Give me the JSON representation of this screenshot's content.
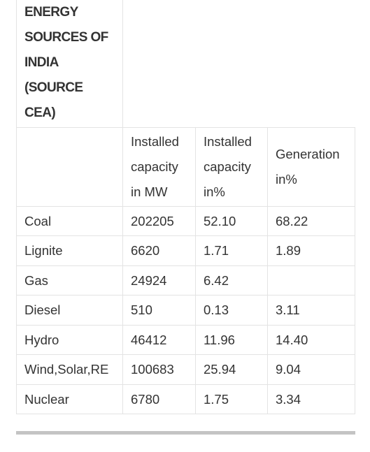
{
  "title": "ENERGY SOURCES OF INDIA (SOURCE CEA)",
  "table": {
    "header": [
      null,
      "Installed capacity in MW",
      "Installed capacity in%",
      "Generation in%"
    ],
    "rows": [
      [
        "Coal",
        "202205",
        "52.10",
        "68.22"
      ],
      [
        "Lignite",
        "6620",
        "1.71",
        "1.89"
      ],
      [
        "Gas",
        "24924",
        "6.42",
        null
      ],
      [
        "Diesel",
        "510",
        "0.13",
        "3.11"
      ],
      [
        "Hydro",
        "46412",
        "11.96",
        "14.40"
      ],
      [
        "Wind,Solar,RE",
        "100683",
        "25.94",
        "9.04"
      ],
      [
        "Nuclear",
        "6780",
        "1.75",
        "3.34"
      ]
    ]
  }
}
